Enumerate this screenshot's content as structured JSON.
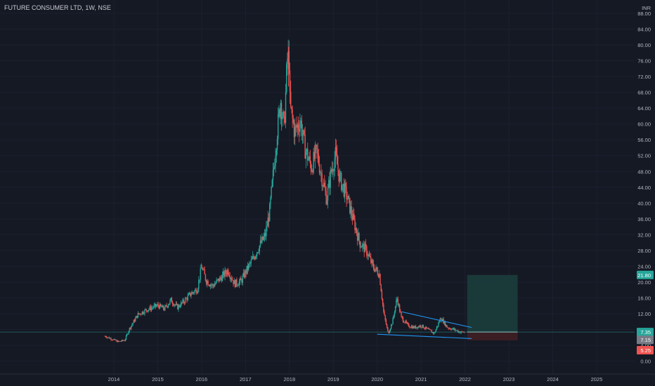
{
  "header": {
    "symbol": "FUTURE CONSUMER LTD",
    "interval": "1W",
    "exchange": "NSE",
    "separator": ", "
  },
  "colors": {
    "background": "#151924",
    "grid": "#1c2030",
    "up": "#26a69a",
    "down": "#ef5350",
    "trendline": "#2196f3",
    "price_line": "#26a69a",
    "target_zone": "#1a3b3b",
    "stop_zone": "#3d1f24",
    "axis_text": "#b2b5be"
  },
  "chart_data": {
    "type": "candlestick",
    "currency": "INR",
    "x_ticks": [
      "2014",
      "2015",
      "2016",
      "2017",
      "2018",
      "2019",
      "2020",
      "2021",
      "2022",
      "2023",
      "2024",
      "2025"
    ],
    "y_ticks": [
      0,
      4,
      8,
      12,
      16,
      20,
      24,
      28,
      32,
      36,
      40,
      44,
      48,
      52,
      56,
      60,
      64,
      68,
      72,
      76,
      80,
      84,
      88
    ],
    "y_tick_labels": [
      "0.00",
      "4.00",
      "8.00",
      "12.00",
      "16.00",
      "20.00",
      "24.00",
      "28.00",
      "32.00",
      "36.00",
      "40.00",
      "44.00",
      "48.00",
      "52.00",
      "56.00",
      "60.00",
      "64.00",
      "68.00",
      "72.00",
      "76.00",
      "80.00",
      "84.00",
      "88.00"
    ],
    "ylim": [
      -2,
      88
    ],
    "xlim": [
      2013.0,
      2026.0
    ],
    "price_path": [
      [
        2013.8,
        6.3
      ],
      [
        2013.95,
        5.6
      ],
      [
        2014.1,
        4.9
      ],
      [
        2014.25,
        5.3
      ],
      [
        2014.35,
        8.1
      ],
      [
        2014.55,
        11.8
      ],
      [
        2014.75,
        13.0
      ],
      [
        2015.0,
        14.1
      ],
      [
        2015.15,
        13.2
      ],
      [
        2015.3,
        15.4
      ],
      [
        2015.45,
        13.6
      ],
      [
        2015.6,
        15.2
      ],
      [
        2015.75,
        17.0
      ],
      [
        2015.9,
        18.2
      ],
      [
        2016.0,
        24.0
      ],
      [
        2016.1,
        20.5
      ],
      [
        2016.25,
        19.0
      ],
      [
        2016.45,
        21.2
      ],
      [
        2016.6,
        23.0
      ],
      [
        2016.75,
        19.6
      ],
      [
        2016.9,
        20.2
      ],
      [
        2017.0,
        22.5
      ],
      [
        2017.15,
        25.5
      ],
      [
        2017.3,
        28.8
      ],
      [
        2017.45,
        31.8
      ],
      [
        2017.55,
        38.0
      ],
      [
        2017.62,
        46.0
      ],
      [
        2017.72,
        58.0
      ],
      [
        2017.8,
        66.0
      ],
      [
        2017.88,
        59.0
      ],
      [
        2017.95,
        76.0
      ],
      [
        2018.02,
        64.0
      ],
      [
        2018.12,
        58.0
      ],
      [
        2018.25,
        61.0
      ],
      [
        2018.35,
        54.0
      ],
      [
        2018.5,
        49.0
      ],
      [
        2018.62,
        53.0
      ],
      [
        2018.75,
        46.0
      ],
      [
        2018.85,
        41.0
      ],
      [
        2018.95,
        48.0
      ],
      [
        2019.05,
        52.0
      ],
      [
        2019.15,
        46.0
      ],
      [
        2019.3,
        42.0
      ],
      [
        2019.45,
        36.0
      ],
      [
        2019.6,
        30.0
      ],
      [
        2019.75,
        28.0
      ],
      [
        2019.9,
        24.0
      ],
      [
        2020.05,
        22.0
      ],
      [
        2020.15,
        12.0
      ],
      [
        2020.25,
        7.0
      ],
      [
        2020.35,
        10.0
      ],
      [
        2020.45,
        16.0
      ],
      [
        2020.55,
        11.0
      ],
      [
        2020.7,
        9.0
      ],
      [
        2020.85,
        8.5
      ],
      [
        2021.0,
        9.0
      ],
      [
        2021.15,
        8.0
      ],
      [
        2021.3,
        7.0
      ],
      [
        2021.45,
        11.0
      ],
      [
        2021.6,
        8.5
      ],
      [
        2021.75,
        8.0
      ],
      [
        2021.9,
        7.3
      ],
      [
        2022.0,
        7.35
      ]
    ],
    "peak": {
      "x": 2017.98,
      "y": 79.5
    },
    "trendlines": [
      {
        "x1": 2020.55,
        "y1": 12.5,
        "x2": 2022.15,
        "y2": 8.5
      },
      {
        "x1": 2020.0,
        "y1": 6.8,
        "x2": 2022.15,
        "y2": 5.7
      }
    ],
    "position": {
      "x_start": 2022.05,
      "x_end": 2023.2,
      "entry": 7.35,
      "target": 21.8,
      "stop": 5.25
    },
    "price_labels": [
      {
        "value": 21.8,
        "text": "21.80",
        "color": "#26a69a"
      },
      {
        "value": 7.35,
        "text": "7.35",
        "color": "#26a69a"
      },
      {
        "value": 7.15,
        "text": "7.15",
        "color": "#787b86"
      },
      {
        "value": 5.25,
        "text": "5.25",
        "color": "#ef5350"
      }
    ],
    "current_price": 7.35
  }
}
